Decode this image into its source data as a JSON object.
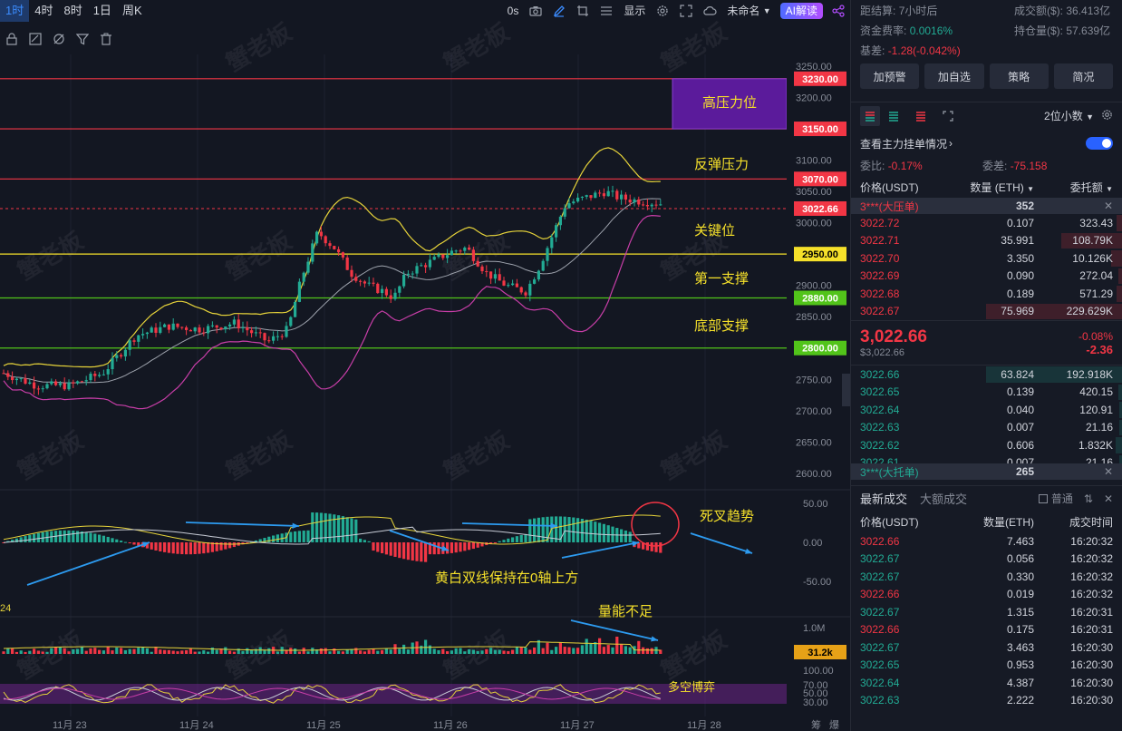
{
  "toolbar": {
    "timeframes": [
      "1时",
      "4时",
      "8时",
      "1日",
      "周K"
    ],
    "active_timeframe": "1时",
    "replay": "0s",
    "display_label": "显示",
    "cloud_label": "未命名",
    "ai_label": "AI解读"
  },
  "watermark": "蟹老板",
  "chart": {
    "price_axis": [
      "3250.00",
      "3200.00",
      "3100.00",
      "3050.00",
      "3000.00",
      "2900.00",
      "2850.00",
      "2750.00",
      "2700.00",
      "2650.00",
      "2600.00"
    ],
    "price_tags": [
      {
        "label": "3230.00",
        "color": "#f23645"
      },
      {
        "label": "3150.00",
        "color": "#f23645"
      },
      {
        "label": "3070.00",
        "color": "#f23645"
      },
      {
        "label": "3022.66",
        "color": "#f23645"
      },
      {
        "label": "2950.00",
        "color": "#f5e02a"
      },
      {
        "label": "2880.00",
        "color": "#52c41a"
      },
      {
        "label": "2800.00",
        "color": "#52c41a"
      }
    ],
    "annotations": {
      "high_pressure": "高压力位",
      "rebound_pressure": "反弹压力",
      "key_level": "关键位",
      "first_support": "第一支撑",
      "bottom_support": "底部支撑",
      "death_cross": "死叉趋势",
      "macd_note": "黄白双线保持在0轴上方",
      "volume_note": "量能不足",
      "kdj_note": "多空博弈"
    },
    "macd_axis": [
      "50.00",
      "0.00",
      "-50.00"
    ],
    "volume_axis": [
      "1.0M"
    ],
    "volume_tag": "31.2k",
    "osc_axis": [
      "100.00",
      "70.00",
      "50.00",
      "30.00"
    ],
    "left_label": "24",
    "dates": [
      "11月 23",
      "11月 24",
      "11月 25",
      "11月 26",
      "11月 27",
      "11月 28"
    ],
    "corner_labels": [
      "筹",
      "爆"
    ]
  },
  "panel": {
    "settlement_label": "距结算:",
    "settlement_value": "7小时后",
    "turnover_label": "成交额($):",
    "turnover_value": "36.413亿",
    "funding_label": "资金费率:",
    "funding_value": "0.0016%",
    "oi_label": "持仓量($):",
    "oi_value": "57.639亿",
    "basis_label": "基差:",
    "basis_value": "-1.28(-0.042%)",
    "buttons": [
      "加预警",
      "加自选",
      "策略",
      "简况"
    ],
    "precision": "2位小数",
    "main_orders_label": "查看主力挂单情况",
    "ratio_label": "委比:",
    "ratio_value": "-0.17%",
    "diff_label": "委差:",
    "diff_value": "-75.158",
    "col_price": "价格(USDT)",
    "col_qty": "数量 (ETH)",
    "col_amount": "委托额",
    "ask_big": {
      "label": "3***(大压单)",
      "qty": "352"
    },
    "asks": [
      {
        "price": "3022.72",
        "qty": "0.107",
        "amount": "323.43"
      },
      {
        "price": "3022.71",
        "qty": "35.991",
        "amount": "108.79K"
      },
      {
        "price": "3022.70",
        "qty": "3.350",
        "amount": "10.126K"
      },
      {
        "price": "3022.69",
        "qty": "0.090",
        "amount": "272.04"
      },
      {
        "price": "3022.68",
        "qty": "0.189",
        "amount": "571.29"
      },
      {
        "price": "3022.67",
        "qty": "75.969",
        "amount": "229.629K"
      }
    ],
    "last_price": "3,022.66",
    "last_price_usd": "$3,022.66",
    "change_pct": "-0.08%",
    "change_abs": "-2.36",
    "bids": [
      {
        "price": "3022.66",
        "qty": "63.824",
        "amount": "192.918K"
      },
      {
        "price": "3022.65",
        "qty": "0.139",
        "amount": "420.15"
      },
      {
        "price": "3022.64",
        "qty": "0.040",
        "amount": "120.91"
      },
      {
        "price": "3022.63",
        "qty": "0.007",
        "amount": "21.16"
      },
      {
        "price": "3022.62",
        "qty": "0.606",
        "amount": "1.832K"
      },
      {
        "price": "3022.61",
        "qty": "0.007",
        "amount": "21.16"
      }
    ],
    "bid_big": {
      "label": "3***(大托单)",
      "qty": "265"
    },
    "trades_tab": "最新成交",
    "big_trades_tab": "大额成交",
    "normal_label": "普通",
    "trade_col_price": "价格(USDT)",
    "trade_col_qty": "数量(ETH)",
    "trade_col_time": "成交时间",
    "trades": [
      {
        "price": "3022.66",
        "qty": "7.463",
        "time": "16:20:32",
        "side": "sell"
      },
      {
        "price": "3022.67",
        "qty": "0.056",
        "time": "16:20:32",
        "side": "buy"
      },
      {
        "price": "3022.67",
        "qty": "0.330",
        "time": "16:20:32",
        "side": "buy"
      },
      {
        "price": "3022.66",
        "qty": "0.019",
        "time": "16:20:32",
        "side": "sell"
      },
      {
        "price": "3022.67",
        "qty": "1.315",
        "time": "16:20:31",
        "side": "buy"
      },
      {
        "price": "3022.66",
        "qty": "0.175",
        "time": "16:20:31",
        "side": "sell"
      },
      {
        "price": "3022.67",
        "qty": "3.463",
        "time": "16:20:30",
        "side": "buy"
      },
      {
        "price": "3022.65",
        "qty": "0.953",
        "time": "16:20:30",
        "side": "buy"
      },
      {
        "price": "3022.64",
        "qty": "4.387",
        "time": "16:20:30",
        "side": "buy"
      },
      {
        "price": "3022.63",
        "qty": "2.222",
        "time": "16:20:30",
        "side": "buy"
      }
    ]
  },
  "colors": {
    "up": "#22ab94",
    "down": "#f23645",
    "accent": "#3b8cff",
    "annotation": "#f5e02a"
  }
}
